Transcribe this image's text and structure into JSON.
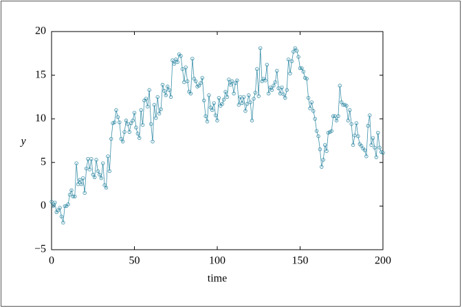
{
  "chart_data": {
    "type": "line",
    "xlabel": "time",
    "ylabel": "y",
    "x": [
      0,
      1,
      2,
      3,
      4,
      5,
      6,
      7,
      8,
      9,
      10,
      11,
      12,
      13,
      14,
      15,
      16,
      17,
      18,
      19,
      20,
      21,
      22,
      23,
      24,
      25,
      26,
      27,
      28,
      29,
      30,
      31,
      32,
      33,
      34,
      35,
      36,
      37,
      38,
      39,
      40,
      41,
      42,
      43,
      44,
      45,
      46,
      47,
      48,
      49,
      50,
      51,
      52,
      53,
      54,
      55,
      56,
      57,
      58,
      59,
      60,
      61,
      62,
      63,
      64,
      65,
      66,
      67,
      68,
      69,
      70,
      71,
      72,
      73,
      74,
      75,
      76,
      77,
      78,
      79,
      80,
      81,
      82,
      83,
      84,
      85,
      86,
      87,
      88,
      89,
      90,
      91,
      92,
      93,
      94,
      95,
      96,
      97,
      98,
      99,
      100,
      101,
      102,
      103,
      104,
      105,
      106,
      107,
      108,
      109,
      110,
      111,
      112,
      113,
      114,
      115,
      116,
      117,
      118,
      119,
      120,
      121,
      122,
      123,
      124,
      125,
      126,
      127,
      128,
      129,
      130,
      131,
      132,
      133,
      134,
      135,
      136,
      137,
      138,
      139,
      140,
      141,
      142,
      143,
      144,
      145,
      146,
      147,
      148,
      149,
      150,
      151,
      152,
      153,
      154,
      155,
      156,
      157,
      158,
      159,
      160,
      161,
      162,
      163,
      164,
      165,
      166,
      167,
      168,
      169,
      170,
      171,
      172,
      173,
      174,
      175,
      176,
      177,
      178,
      179,
      180,
      181,
      182,
      183,
      184,
      185,
      186,
      187,
      188,
      189,
      190,
      191,
      192,
      193,
      194,
      195,
      196,
      197,
      198,
      199,
      200
    ],
    "series": [
      {
        "name": "y",
        "color": "#3a8fa8",
        "values": [
          0.5,
          0,
          0.4,
          -0.7,
          -0.5,
          -0.2,
          -1.2,
          -1.9,
          0,
          0,
          0.2,
          1.3,
          1.8,
          1.1,
          1.1,
          4.9,
          2.5,
          3,
          2.5,
          3.2,
          1.5,
          4.3,
          5.4,
          4.2,
          5.4,
          3.6,
          3.3,
          5.3,
          4,
          3.6,
          3.2,
          4.9,
          2.4,
          2.1,
          5.7,
          4,
          7.7,
          9.5,
          9.6,
          11,
          10.2,
          9.6,
          7.7,
          7.4,
          8.5,
          9.8,
          9.4,
          8.5,
          9.5,
          9.8,
          10.7,
          9,
          8.3,
          7.8,
          11,
          9.3,
          12.1,
          12.3,
          11.4,
          13.3,
          9.4,
          7.4,
          11.6,
          10.1,
          12.5,
          10.6,
          11.1,
          13.9,
          13.2,
          12.7,
          13.7,
          13.3,
          12.5,
          16.7,
          16.3,
          16.8,
          16.5,
          17.4,
          17.2,
          15.7,
          14.2,
          15.9,
          14.3,
          13.1,
          12.9,
          16.9,
          14.6,
          14.3,
          13.7,
          13.8,
          14.1,
          14.7,
          12.1,
          10.3,
          9.7,
          12.7,
          11.3,
          11,
          11.8,
          10.4,
          9.8,
          12.4,
          11.5,
          11.7,
          12.2,
          13.1,
          12.5,
          14.5,
          13.9,
          14.3,
          12.9,
          14.1,
          14.4,
          11.6,
          12.5,
          11.8,
          12.5,
          10.9,
          11.7,
          12.7,
          11.9,
          9.8,
          12.3,
          13,
          15.7,
          12.6,
          18.1,
          14.3,
          14.6,
          14.4,
          16.2,
          12.9,
          13.6,
          13.3,
          13.8,
          14.2,
          15.5,
          13.5,
          12.9,
          13.6,
          12.8,
          12.4,
          13.3,
          16.8,
          15.2,
          16.6,
          17.7,
          18.1,
          17.8,
          17.1,
          15.8,
          15.8,
          15.4,
          14.7,
          14.6,
          12.4,
          11.2,
          11.9,
          10.9,
          10,
          8.6,
          8,
          6.5,
          4.5,
          5.3,
          7,
          6.3,
          8.4,
          8.5,
          8.6,
          10.3,
          10.3,
          9.8,
          10.3,
          13.8,
          11.9,
          11.6,
          11.6,
          11.5,
          9.8,
          11,
          9.4,
          7,
          8.1,
          9.5,
          8,
          7.1,
          6.9,
          6.6,
          6.4,
          5.7,
          9.2,
          10.4,
          7,
          7.8,
          6.7,
          5.6,
          8.4,
          6.7,
          6.2,
          6.1
        ]
      }
    ],
    "xlim": [
      0,
      200
    ],
    "ylim": [
      -5,
      20
    ],
    "xticks": [
      0,
      50,
      100,
      150,
      200
    ],
    "yticks": [
      {
        "value": -5,
        "label": "−5"
      },
      0,
      5,
      10,
      15,
      20
    ]
  }
}
